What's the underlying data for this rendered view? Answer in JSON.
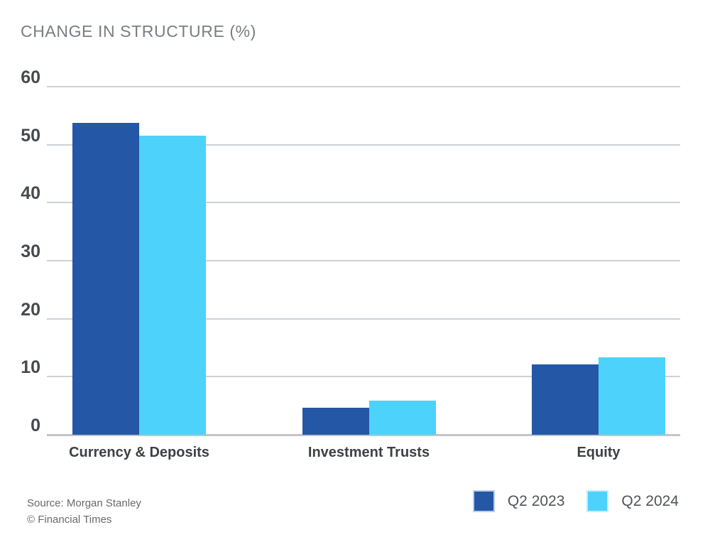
{
  "header": {
    "title": "CHANGE IN STRUCTURE (%)"
  },
  "chart_data": {
    "type": "bar",
    "title": "CHANGE IN STRUCTURE (%)",
    "categories": [
      "Currency & Deposits",
      "Investment Trusts",
      "Equity"
    ],
    "series": [
      {
        "name": "Q2 2023",
        "color": "#2457a6",
        "swatch_border": "#b8cfe9",
        "values": [
          53.7,
          4.6,
          12.1
        ]
      },
      {
        "name": "Q2 2024",
        "color": "#4dd2fc",
        "swatch_border": "#c8ecfa",
        "values": [
          51.5,
          5.9,
          13.4
        ]
      }
    ],
    "xlabel": "",
    "ylabel": "",
    "ylim": [
      0,
      60
    ],
    "ytick_step": 10,
    "yticks": [
      0,
      10,
      20,
      30,
      40,
      50,
      60
    ],
    "grid": true,
    "legend_position": "bottom-right"
  },
  "colors": {
    "gridline": "#cdd1d5",
    "baseline": "#c2c4c8",
    "title_text": "#797d83",
    "axis_text": "#46494e",
    "category_text": "#3d4045",
    "legend_text": "#515459",
    "source_text": "#67696d"
  },
  "footer": {
    "source_line1": "Source: Morgan Stanley",
    "source_line2": "© Financial Times"
  }
}
